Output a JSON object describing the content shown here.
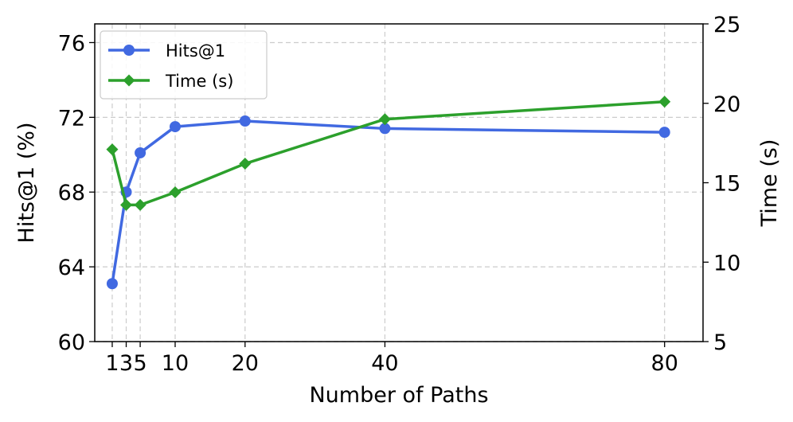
{
  "chart_data": {
    "type": "line",
    "xlabel": "Number of Paths",
    "ylabel_left": "Hits@1 (%)",
    "ylabel_right": "Time (s)",
    "x": [
      1,
      3,
      5,
      10,
      20,
      40,
      80
    ],
    "x_tick_labels": [
      "1",
      "3",
      "5",
      "10",
      "20",
      "40",
      "80"
    ],
    "xlim": [
      -1.5,
      85.5
    ],
    "ylim_left": [
      60,
      77
    ],
    "yticks_left": [
      60,
      64,
      68,
      72,
      76
    ],
    "ylim_right": [
      5,
      25
    ],
    "yticks_right": [
      5,
      10,
      15,
      20,
      25
    ],
    "grid": true,
    "legend_position": "top-left",
    "series": [
      {
        "name": "Hits@1",
        "axis": "left",
        "marker": "circle",
        "color": "#4169E1",
        "values": [
          63.1,
          68.0,
          70.1,
          71.5,
          71.8,
          71.4,
          71.2
        ]
      },
      {
        "name": "Time (s)",
        "axis": "right",
        "marker": "diamond",
        "color": "#2CA02C",
        "values": [
          17.1,
          13.6,
          13.6,
          14.4,
          16.2,
          19.0,
          20.1
        ]
      }
    ]
  }
}
